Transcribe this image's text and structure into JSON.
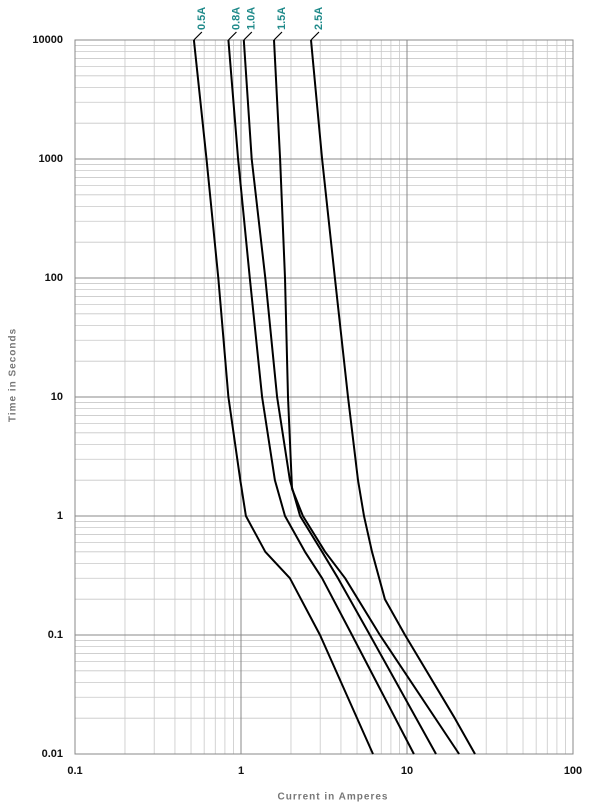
{
  "chart_data": {
    "type": "line",
    "log_x": true,
    "log_y": true,
    "grid": true,
    "minor_grid": true,
    "x_label": "Current in Amperes",
    "y_label": "Time in Seconds",
    "xlim": [
      0.1,
      100
    ],
    "xticks": [
      0.1,
      1,
      10,
      100
    ],
    "ylim": [
      0.01,
      10000
    ],
    "yticks": [
      0.01,
      0.1,
      1,
      10,
      100,
      1000,
      10000
    ],
    "label_color": "#1f8a8a",
    "series": [
      {
        "name": "0.5A",
        "color": "#000000",
        "x": [
          0.52,
          0.62,
          0.73,
          0.84,
          0.99,
          1.07,
          1.4,
          1.97,
          2.99,
          6.24
        ],
        "values": [
          10000,
          1000,
          100,
          10,
          2,
          1,
          0.5,
          0.3,
          0.1,
          0.01
        ]
      },
      {
        "name": "0.8A",
        "color": "#000000",
        "x": [
          0.84,
          0.96,
          1.13,
          1.34,
          1.6,
          1.84,
          2.43,
          3.08,
          4.66,
          11.0
        ],
        "values": [
          10000,
          1000,
          100,
          10,
          2,
          1,
          0.5,
          0.3,
          0.1,
          0.01
        ]
      },
      {
        "name": "1.0A",
        "color": "#000000",
        "x": [
          1.04,
          1.16,
          1.4,
          1.65,
          1.97,
          2.27,
          3.08,
          3.84,
          5.98,
          14.96
        ],
        "values": [
          10000,
          1000,
          100,
          10,
          2,
          1,
          0.5,
          0.3,
          0.1,
          0.01
        ]
      },
      {
        "name": "1.5A",
        "color": "#000000",
        "x": [
          1.58,
          1.72,
          1.84,
          1.92,
          2.03,
          2.36,
          3.21,
          4.24,
          6.87,
          20.6
        ],
        "values": [
          10000,
          1000,
          100,
          10,
          1.7,
          1,
          0.5,
          0.3,
          0.1,
          0.01
        ]
      },
      {
        "name": "2.5A",
        "color": "#000000",
        "x": [
          2.64,
          3.08,
          3.68,
          4.41,
          5.07,
          5.51,
          6.15,
          7.36,
          9.73,
          19.4,
          25.7
        ],
        "values": [
          10000,
          1000,
          100,
          10,
          2,
          1,
          0.5,
          0.2,
          0.1,
          0.02,
          0.01
        ]
      }
    ]
  }
}
